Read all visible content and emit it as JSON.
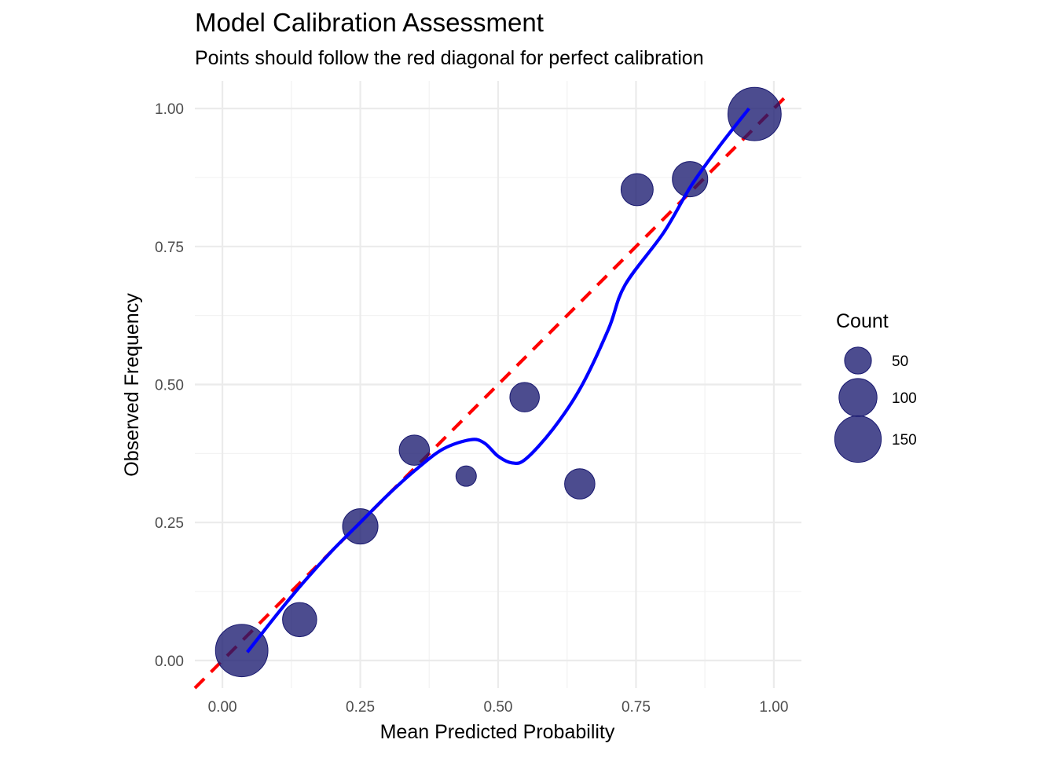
{
  "chart_data": {
    "type": "scatter",
    "title": "Model Calibration Assessment",
    "subtitle": "Points should follow the red diagonal for perfect calibration",
    "xlabel": "Mean Predicted Probability",
    "ylabel": "Observed Frequency",
    "xlim": [
      -0.05,
      1.05
    ],
    "ylim": [
      -0.05,
      1.05
    ],
    "x_ticks": [
      "0.00",
      "0.25",
      "0.50",
      "0.75",
      "1.00"
    ],
    "y_ticks": [
      "0.00",
      "0.25",
      "0.50",
      "0.75",
      "1.00"
    ],
    "grid": true,
    "point_color": "#191970",
    "smooth_color": "#0000ff",
    "reference_color": "#ff0000",
    "points": [
      {
        "x": 0.035,
        "y": 0.018,
        "count": 165
      },
      {
        "x": 0.14,
        "y": 0.074,
        "count": 70
      },
      {
        "x": 0.25,
        "y": 0.243,
        "count": 75
      },
      {
        "x": 0.348,
        "y": 0.381,
        "count": 55
      },
      {
        "x": 0.442,
        "y": 0.334,
        "count": 25
      },
      {
        "x": 0.548,
        "y": 0.477,
        "count": 52
      },
      {
        "x": 0.648,
        "y": 0.32,
        "count": 55
      },
      {
        "x": 0.752,
        "y": 0.853,
        "count": 62
      },
      {
        "x": 0.848,
        "y": 0.872,
        "count": 75
      },
      {
        "x": 0.965,
        "y": 0.99,
        "count": 170
      }
    ],
    "smooth_line": [
      [
        0.045,
        0.015
      ],
      [
        0.1,
        0.085
      ],
      [
        0.15,
        0.145
      ],
      [
        0.2,
        0.2
      ],
      [
        0.25,
        0.25
      ],
      [
        0.3,
        0.3
      ],
      [
        0.35,
        0.345
      ],
      [
        0.4,
        0.383
      ],
      [
        0.45,
        0.4
      ],
      [
        0.475,
        0.394
      ],
      [
        0.5,
        0.37
      ],
      [
        0.525,
        0.358
      ],
      [
        0.55,
        0.365
      ],
      [
        0.6,
        0.42
      ],
      [
        0.65,
        0.495
      ],
      [
        0.7,
        0.6
      ],
      [
        0.73,
        0.68
      ],
      [
        0.8,
        0.775
      ],
      [
        0.85,
        0.86
      ],
      [
        0.9,
        0.93
      ],
      [
        0.955,
        1.0
      ]
    ],
    "reference_line": [
      [
        -0.05,
        -0.05
      ],
      [
        1.03,
        1.03
      ]
    ],
    "legend": {
      "title": "Count",
      "position": "right",
      "entries": [
        {
          "label": "50",
          "count": 50
        },
        {
          "label": "100",
          "count": 100
        },
        {
          "label": "150",
          "count": 150
        }
      ]
    }
  }
}
